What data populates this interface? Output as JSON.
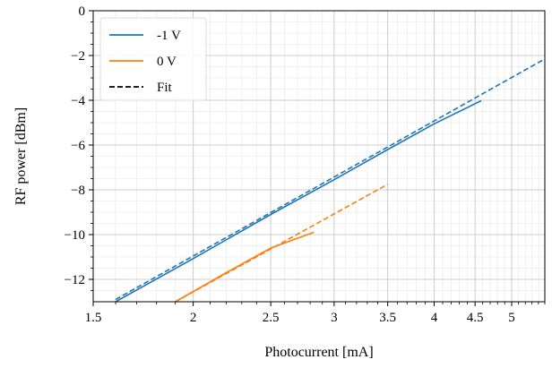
{
  "chart_data": {
    "type": "line",
    "title": "",
    "xlabel": "Photocurrent [mA]",
    "ylabel": "RF power [dBm]",
    "xscale": "log",
    "xlim": [
      1.5,
      5.5
    ],
    "ylim": [
      -13,
      0
    ],
    "xticks": [
      1.5,
      2,
      2.5,
      3,
      3.5,
      4,
      4.5,
      5
    ],
    "xtick_labels": [
      "1.5",
      "2",
      "2.5",
      "3",
      "3.5",
      "4",
      "4.5",
      "5"
    ],
    "yticks": [
      0,
      -2,
      -4,
      -6,
      -8,
      -10,
      -12
    ],
    "ytick_labels": [
      "0",
      "−2",
      "−4",
      "−6",
      "−8",
      "−10",
      "−12"
    ],
    "grid": true,
    "legend_position": "top-left",
    "colors": {
      "series_a": "#1f77b4",
      "series_b": "#ff7f0e",
      "fit": "#000000"
    },
    "legend": [
      {
        "label": "-1 V",
        "style": "solid",
        "color": "#1f77b4"
      },
      {
        "label": "0 V",
        "style": "solid",
        "color": "#ff7f0e"
      },
      {
        "label": "Fit",
        "style": "dashed",
        "color": "#000000"
      }
    ],
    "series": [
      {
        "name": "-1 V",
        "style": "solid",
        "color": "#1f77b4",
        "x": [
          1.6,
          2.0,
          2.5,
          3.0,
          3.5,
          4.0,
          4.58
        ],
        "y": [
          -13.0,
          -11.07,
          -9.1,
          -7.55,
          -6.2,
          -5.05,
          -4.02
        ]
      },
      {
        "name": "0 V",
        "style": "solid",
        "color": "#ff7f0e",
        "x": [
          1.9,
          2.2,
          2.5,
          2.83
        ],
        "y": [
          -13.0,
          -11.7,
          -10.6,
          -9.9
        ]
      },
      {
        "name": "-1 V fit",
        "style": "dashed",
        "color": "#1f77b4",
        "x": [
          1.6,
          5.5
        ],
        "y": [
          -12.9,
          -2.15
        ]
      },
      {
        "name": "0 V fit",
        "style": "dashed",
        "color": "#ff7f0e",
        "x": [
          1.9,
          3.5
        ],
        "y": [
          -13.0,
          -7.75
        ]
      }
    ]
  }
}
